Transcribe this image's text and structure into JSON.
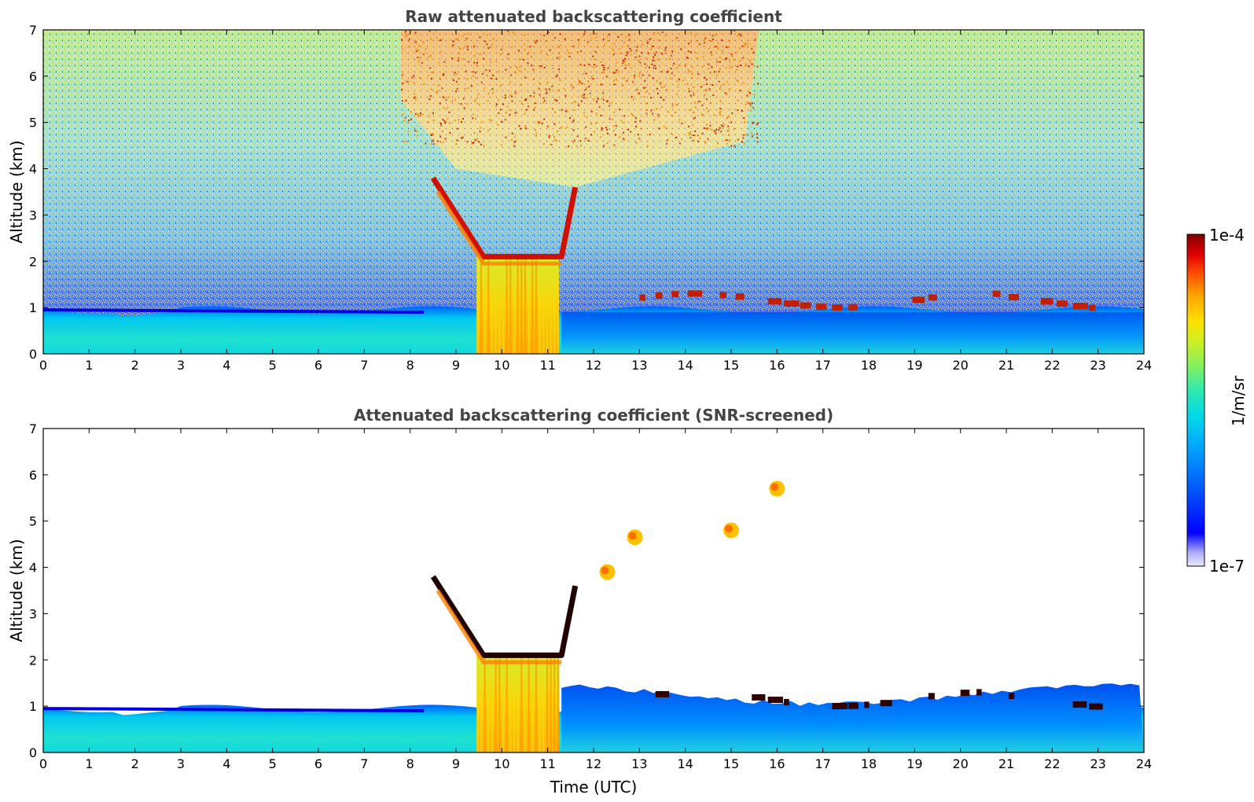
{
  "chart_data": [
    {
      "type": "heatmap",
      "title": "Raw attenuated backscattering coefficient",
      "xlabel": "",
      "ylabel": "Altitude (km)",
      "xlim": [
        0,
        24
      ],
      "ylim": [
        0,
        7
      ],
      "xticks": [
        "0",
        "1",
        "2",
        "3",
        "4",
        "5",
        "6",
        "7",
        "8",
        "9",
        "10",
        "11",
        "12",
        "13",
        "14",
        "15",
        "16",
        "17",
        "18",
        "19",
        "20",
        "21",
        "22",
        "23",
        "24"
      ],
      "yticks": [
        "0",
        "1",
        "2",
        "3",
        "4",
        "5",
        "6",
        "7"
      ],
      "features": [
        {
          "name": "boundary-layer",
          "t_start": 0,
          "t_end": 24,
          "alt_top_km": 0.95
        },
        {
          "name": "fog-column",
          "t_start": 9.45,
          "t_end": 11.25,
          "alt_top_km": 2.1
        },
        {
          "name": "cloud-base-descending",
          "t_start": 8.5,
          "t_end": 9.6,
          "alt_start_km": 3.8,
          "alt_end_km": 2.1
        },
        {
          "name": "cloud-base-flat",
          "t_start": 9.6,
          "t_end": 11.3,
          "alt_km": 2.1
        },
        {
          "name": "cloud-base-rising",
          "t_start": 11.0,
          "t_end": 11.6,
          "alt_start_km": 2.2,
          "alt_end_km": 3.6
        },
        {
          "name": "low-clouds",
          "t_start": 13.0,
          "t_end": 23.0,
          "alt_km": 1.1
        },
        {
          "name": "high-noise-region",
          "t_start": 7.8,
          "t_end": 15.6,
          "alt_min_km": 4.0
        }
      ]
    },
    {
      "type": "heatmap",
      "title": "Attenuated backscattering coefficient (SNR-screened)",
      "xlabel": "Time (UTC)",
      "ylabel": "Altitude (km)",
      "xlim": [
        0,
        24
      ],
      "ylim": [
        0,
        7
      ],
      "xticks": [
        "0",
        "1",
        "2",
        "3",
        "4",
        "5",
        "6",
        "7",
        "8",
        "9",
        "10",
        "11",
        "12",
        "13",
        "14",
        "15",
        "16",
        "17",
        "18",
        "19",
        "20",
        "21",
        "22",
        "23",
        "24"
      ],
      "yticks": [
        "0",
        "1",
        "2",
        "3",
        "4",
        "5",
        "6",
        "7"
      ],
      "features": [
        {
          "name": "boundary-layer",
          "t_start": 0,
          "t_end": 24,
          "alt_top_km": 0.95
        },
        {
          "name": "fog-column",
          "t_start": 9.45,
          "t_end": 11.25,
          "alt_top_km": 2.1
        },
        {
          "name": "elevated-layer",
          "t_start": 11.3,
          "t_end": 24,
          "alt_top_km": 1.3
        },
        {
          "name": "cloud-patch",
          "t_center": 12.3,
          "alt_km": 3.9
        },
        {
          "name": "cloud-patch",
          "t_center": 12.9,
          "alt_km": 4.65
        },
        {
          "name": "cloud-patch",
          "t_center": 15.0,
          "alt_km": 4.8
        },
        {
          "name": "cloud-patch",
          "t_center": 16.0,
          "alt_km": 5.7
        }
      ]
    }
  ],
  "colorbar": {
    "max_label": "1e-4",
    "min_label": "1e-7",
    "unit_label": "1/m/sr",
    "scale": "log",
    "range": [
      1e-07,
      0.0001
    ],
    "colormap": [
      "#e9e9fb",
      "#aeaeff",
      "#0000ff",
      "#0050ff",
      "#00a0ff",
      "#00d8e8",
      "#30e8b0",
      "#80f060",
      "#d0f020",
      "#ffe000",
      "#ffa000",
      "#ff5000",
      "#e00000",
      "#800000"
    ]
  }
}
